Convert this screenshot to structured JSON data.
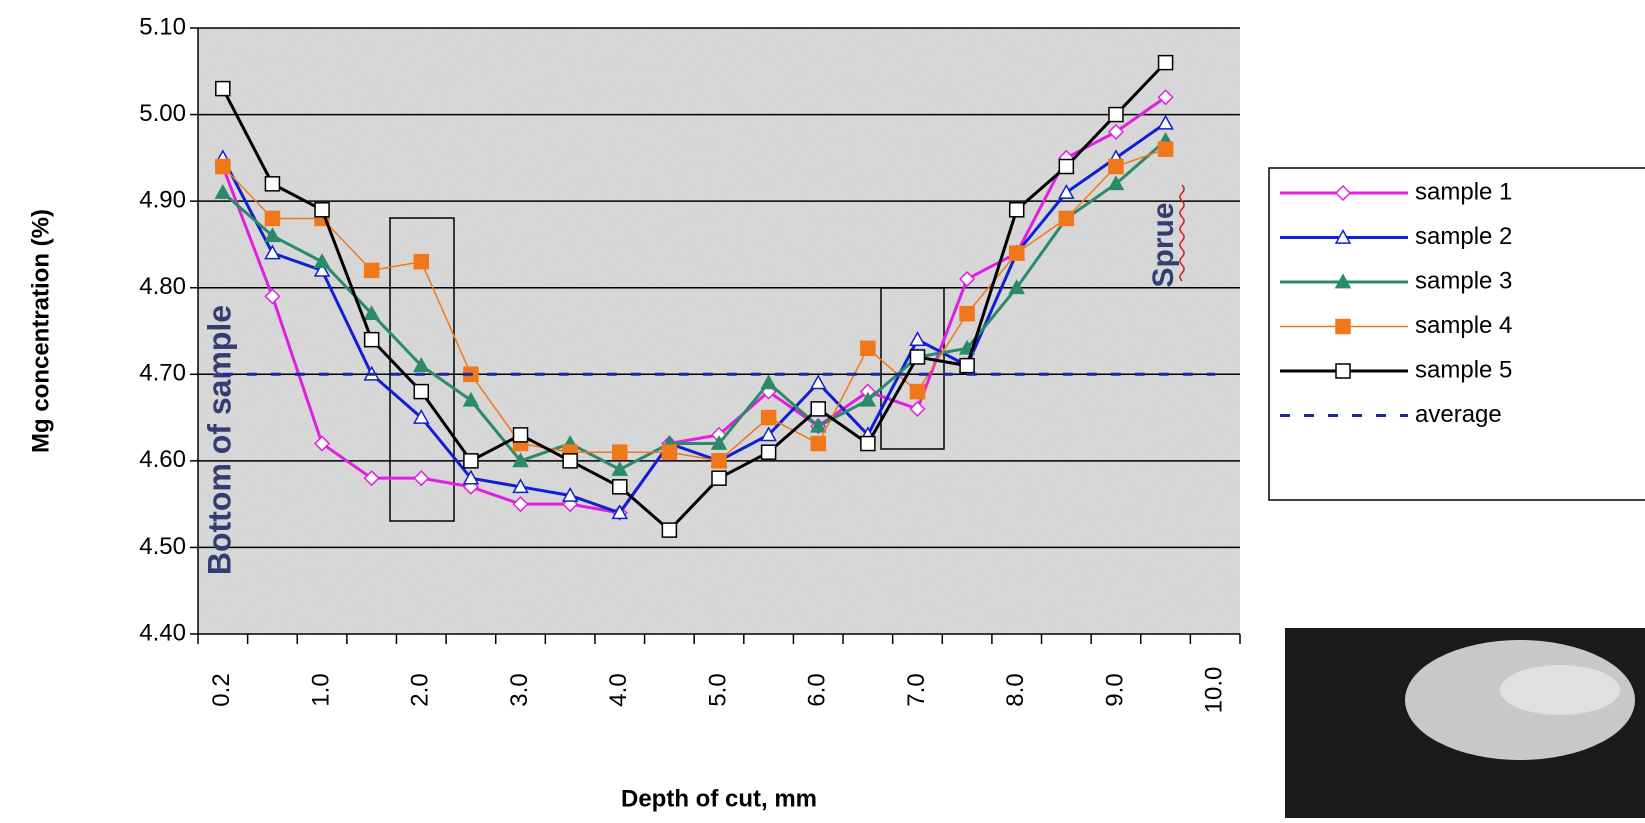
{
  "chart_data": {
    "type": "line",
    "x_label": "Depth of cut, mm",
    "y_label": "Mg concentration (%)",
    "annotations": [
      "Bottom of sample",
      "Sprue"
    ],
    "categories": [
      "0.2",
      null,
      "1.0",
      null,
      "2.0",
      null,
      "3.0",
      null,
      "4.0",
      null,
      "5.0",
      null,
      "6.0",
      null,
      "7.0",
      null,
      "8.0",
      null,
      "9.0",
      null,
      "10.0"
    ],
    "ylim": [
      4.4,
      5.1
    ],
    "yticks": [
      {
        "value": 4.4,
        "label": "4.40"
      },
      {
        "value": 4.5,
        "label": "4.50"
      },
      {
        "value": 4.6,
        "label": "4.60"
      },
      {
        "value": 4.7,
        "label": "4.70"
      },
      {
        "value": 4.8,
        "label": "4.80"
      },
      {
        "value": 4.9,
        "label": "4.90"
      },
      {
        "value": 5.0,
        "label": "5.00"
      },
      {
        "value": 5.1,
        "label": "5.10"
      }
    ],
    "grid": true,
    "legend": "right",
    "series": [
      {
        "name": "sample 1",
        "color": "#e020e0",
        "marker": "open-diamond",
        "width": 3,
        "values": [
          4.94,
          4.79,
          4.62,
          4.58,
          4.58,
          4.57,
          4.55,
          4.55,
          4.54,
          4.62,
          4.63,
          4.68,
          4.64,
          4.68,
          4.66,
          4.81,
          4.84,
          4.95,
          4.98,
          5.02,
          null
        ]
      },
      {
        "name": "sample 2",
        "color": "#1020d0",
        "marker": "open-triangle",
        "width": 3,
        "values": [
          4.95,
          4.84,
          4.82,
          4.7,
          4.65,
          4.58,
          4.57,
          4.56,
          4.54,
          4.62,
          4.6,
          4.63,
          4.69,
          4.63,
          4.74,
          4.71,
          4.84,
          4.91,
          4.95,
          4.99,
          null
        ]
      },
      {
        "name": "sample 3",
        "color": "#2a8a6a",
        "marker": "triangle",
        "width": 3,
        "values": [
          4.91,
          4.86,
          4.83,
          4.77,
          4.71,
          4.67,
          4.6,
          4.62,
          4.59,
          4.62,
          4.62,
          4.69,
          4.64,
          4.67,
          4.72,
          4.73,
          4.8,
          4.88,
          4.92,
          4.97,
          null
        ]
      },
      {
        "name": "sample 4",
        "color": "#f07818",
        "marker": "square",
        "width": 1.5,
        "values": [
          4.94,
          4.88,
          4.88,
          4.82,
          4.83,
          4.7,
          4.62,
          4.61,
          4.61,
          4.61,
          4.6,
          4.65,
          4.62,
          4.73,
          4.68,
          4.77,
          4.84,
          4.88,
          4.94,
          4.96,
          null
        ]
      },
      {
        "name": "sample 5",
        "color": "#000000",
        "marker": "open-square",
        "width": 3,
        "values": [
          5.03,
          4.92,
          4.89,
          4.74,
          4.68,
          4.6,
          4.63,
          4.6,
          4.57,
          4.52,
          4.58,
          4.61,
          4.66,
          4.62,
          4.72,
          4.71,
          4.89,
          4.94,
          5.0,
          5.06,
          null
        ]
      },
      {
        "name": "average",
        "color": "#1a2a9a",
        "marker": "none",
        "dash": true,
        "width": 3,
        "values": [
          4.7,
          4.7,
          4.7,
          4.7,
          4.7,
          4.7,
          4.7,
          4.7,
          4.7,
          4.7,
          4.7,
          4.7,
          4.7,
          4.7,
          4.7,
          4.7,
          4.7,
          4.7,
          4.7,
          4.7,
          4.7
        ]
      }
    ]
  }
}
